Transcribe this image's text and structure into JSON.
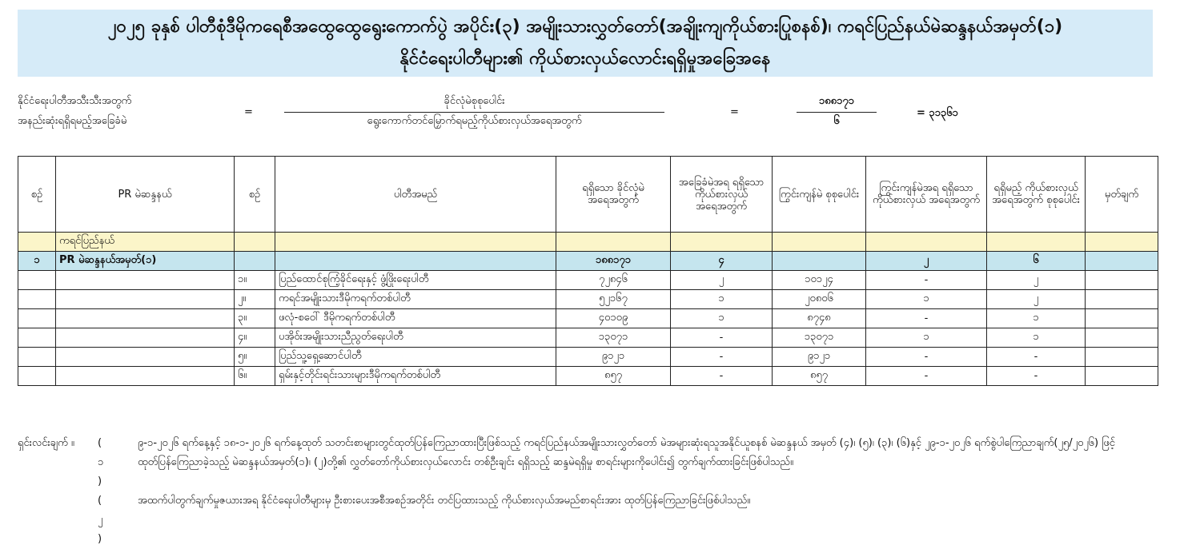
{
  "title": {
    "line1": "၂၀၂၅ ခုနှစ် ပါတီစုံဒီမိုကရေစီအထွေထွေရွေးကောက်ပွဲ အပိုင်း(၃) အမျိုးသားလွှတ်တော်(အချိုးကျကိုယ်စားပြုစနစ်)၊ ကရင်ပြည်နယ်မဲဆန္ဒနယ်အမှတ်(၁)",
    "line2": "နိုင်ငံရေးပါတီများ၏ ကိုယ်စားလှယ်လောင်းရရှိမှုအခြေအနေ"
  },
  "formula": {
    "left1": "နိုင်ငံရေးပါတီအသီးသီးအတွက်",
    "left2": "အနည်းဆုံးရရှိရမည့်အခြေခံမဲ",
    "eq": "=",
    "num1": "ခိုင်လုံမဲစုစုပေါင်း",
    "den1": "ရွေးကောက်တင်မြှောက်ရမည့်ကိုယ်စားလှယ်အရေအတွက်",
    "num2": "၁၈၈၁၇၁",
    "den2": "၆",
    "result": "= ၃၁၃၆၁"
  },
  "headers": [
    "စဉ်",
    "PR မဲဆန္ဒနယ်",
    "စဉ်",
    "ပါတီအမည်",
    "ရရှိသော ခိုင်လုံမဲ အရေအတွက်",
    "အခြေခံမဲအရ ရရှိသော ကိုယ်စားလှယ် အရေအတွက်",
    "ကြွင်းကျန်မဲ စုစုပေါင်း",
    "ကြွင်းကျန်မဲအရ ရရှိသော ကိုယ်စားလှယ် အရေအတွက်",
    "ရရှိမည့် ကိုယ်စားလှယ် အရေအတွက် စုစုပေါင်း",
    "မှတ်ချက်"
  ],
  "region_row": {
    "name": "ကရင်ပြည်နယ်"
  },
  "constituency_row": {
    "no": "၁",
    "name": "PR မဲဆန္ဒနယ်အမှတ်(၁)",
    "valid_votes": "၁၈၈၁၇၁",
    "base_seats": "၄",
    "remainder_seats": "၂",
    "total_seats": "၆"
  },
  "parties": [
    {
      "no": "၁။",
      "name": "ပြည်ထောင်စုကြံ့ခိုင်ရေးနှင့် ဖွံ့ဖြိုးရေးပါတီ",
      "votes": "၇၂၈၄၆",
      "base": "၂",
      "remainder": "၁၀၁၂၄",
      "rem_seats": "-",
      "total": "၂"
    },
    {
      "no": "၂။",
      "name": "ကရင်အမျိုးသားဒီမိုကရက်တစ်ပါတီ",
      "votes": "၅၂၁၆၇",
      "base": "၁",
      "remainder": "၂၀၈၀၆",
      "rem_seats": "၁",
      "total": "၂"
    },
    {
      "no": "၃။",
      "name": "ဖလုံ-စဝေါ် ဒီမိုကရက်တစ်ပါတီ",
      "votes": "၄၀၁၀၉",
      "base": "၁",
      "remainder": "၈၇၄၈",
      "rem_seats": "-",
      "total": "၁"
    },
    {
      "no": "၄။",
      "name": "ပအိုဝ်းအမျိုးသားညီညွတ်ရေးပါတီ",
      "votes": "၁၃၀၇၁",
      "base": "-",
      "remainder": "၁၃၀၇၁",
      "rem_seats": "၁",
      "total": "၁"
    },
    {
      "no": "၅။",
      "name": "ပြည်သူ့ရှေ့ဆောင်ပါတီ",
      "votes": "၉၁၂၁",
      "base": "-",
      "remainder": "၉၁၂၁",
      "rem_seats": "-",
      "total": "-"
    },
    {
      "no": "၆။",
      "name": "ရှမ်းနှင့်တိုင်းရင်းသားများဒီမိုကရက်တစ်ပါတီ",
      "votes": "၈၅၇",
      "base": "-",
      "remainder": "၈၅၇",
      "rem_seats": "-",
      "total": "-"
    }
  ],
  "notes": {
    "label": "ရှင်းလင်းချက် ။",
    "n1": "( ၁ )",
    "t1": "၉-၁-၂၀၂၆ ရက်နေ့နှင့် ၁၈-၁-၂၀၂၆ ရက်နေ့ထုတ် သတင်းစာများတွင်ထုတ်ပြန်ကြေညာထားပြီးဖြစ်သည့် ကရင်ပြည်နယ်အမျိုးသားလွှတ်တော် မဲအများဆုံးရသူအနိုင်ယူစနစ် မဲဆန္ဒနယ် အမှတ် (၄)၊ (၅)၊ (၃)၊ (၆)နှင့် ၂၉-၁-၂၀၂၆ ရက်စွဲပါကြေညာချက်(၂၅/၂၀၂၆) ဖြင့် ထုတ်ပြန်ကြေညာခဲ့သည့် မဲဆန္ဒနယ်အမှတ်(၁)၊ (၂)တို့၏ လွှတ်တော်ကိုယ်စားလှယ်လောင်း တစ်ဦးချင်း ရရှိသည့် ဆန္ဒမဲရရှိမှု စာရင်းများကိုပေါင်း၍ တွက်ချက်ထားခြင်းဖြစ်ပါသည်။",
    "n2": "( ၂ )",
    "t2": "အထက်ပါတွက်ချက်မှုဇယားအရ နိုင်ငံရေးပါတီများမှ ဦးစားပေးအစီအစဉ်အတိုင်း တင်ပြထားသည့် ကိုယ်စားလှယ်အမည်စာရင်းအား ထုတ်ပြန်ကြေညာခြင်းဖြစ်ပါသည်။"
  }
}
